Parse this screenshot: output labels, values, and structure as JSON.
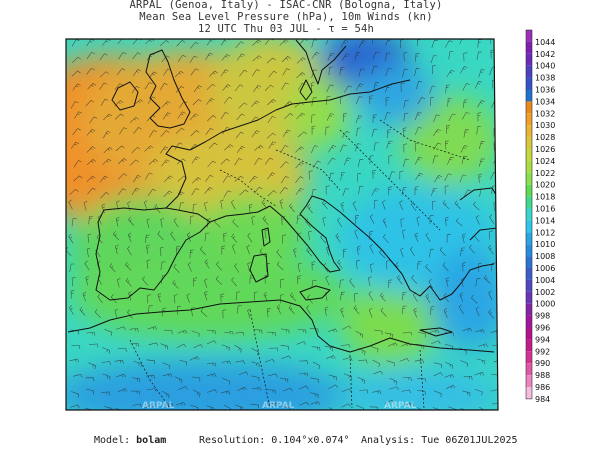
{
  "header": {
    "line1": "ARPAL (Genoa, Italy)  -  ISAC-CNR (Bologna, Italy)",
    "line2": "Mean Sea Level Pressure (hPa), 10m Winds (kn)",
    "line3": "12 UTC Thu 03 JUL  -  τ = 54h"
  },
  "watermark": "ARPAL",
  "colorbar": {
    "labels": [
      "1044",
      "1042",
      "1040",
      "1038",
      "1036",
      "1034",
      "1032",
      "1030",
      "1028",
      "1026",
      "1024",
      "1022",
      "1020",
      "1018",
      "1016",
      "1014",
      "1012",
      "1010",
      "1008",
      "1006",
      "1004",
      "1002",
      "1000",
      "998",
      "996",
      "994",
      "992",
      "990",
      "988",
      "986",
      "984"
    ],
    "colors": [
      "#9a2fb7",
      "#7f1fb0",
      "#6a2aba",
      "#4b3fc2",
      "#3552c9",
      "#1f70cf",
      "#e88a1e",
      "#f0a02a",
      "#e9b43a",
      "#d7c640",
      "#c6d83f",
      "#aadd44",
      "#8be04f",
      "#5fdc53",
      "#42d98e",
      "#38d6cd",
      "#2fc6e8",
      "#2aa6e4",
      "#268ddd",
      "#2a73d3",
      "#3c5cca",
      "#5148c0",
      "#6a35b6",
      "#8624a6",
      "#a0169a",
      "#b4118d",
      "#c51a8c",
      "#d43394",
      "#e058a6",
      "#ec86c1",
      "#f5bcdc"
    ]
  },
  "footer": {
    "model_label": "Model:",
    "model_value": "bolam",
    "resolution_label": "Resolution:",
    "resolution_value": "0.104°x0.074°",
    "analysis_label": "Analysis:",
    "analysis_value": "Tue 06Z01JUL2025"
  }
}
